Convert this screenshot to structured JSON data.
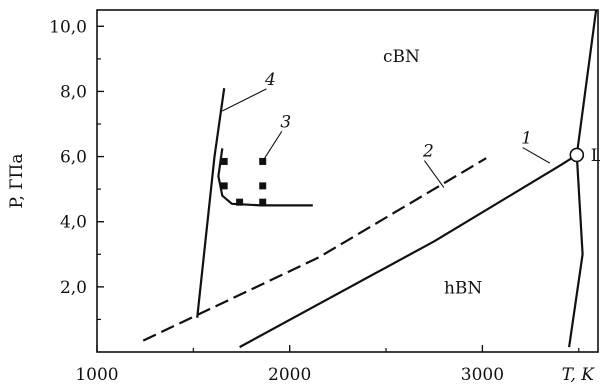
{
  "chart_data": {
    "type": "line",
    "xlabel": "T, K",
    "ylabel": "P, ГПа",
    "xlim": [
      1000,
      3600
    ],
    "ylim": [
      0,
      10.5
    ],
    "x_ticks": [
      1000,
      2000,
      3000
    ],
    "x_tick_labels": [
      "1000",
      "2000",
      "3000"
    ],
    "y_ticks": [
      2,
      4,
      6,
      8,
      10
    ],
    "y_tick_labels": [
      "2,0",
      "4,0",
      "6,0",
      "8,0",
      "10,0"
    ],
    "regions": [
      {
        "label": "cBN",
        "x": 2580,
        "y": 8.9
      },
      {
        "label": "hBN",
        "x": 2900,
        "y": 1.8
      }
    ],
    "series": [
      {
        "label": "1",
        "style": "solid",
        "points": [
          [
            1740,
            0.15
          ],
          [
            2750,
            3.4
          ],
          [
            3410,
            5.75
          ],
          [
            3490,
            6.05
          ]
        ]
      },
      {
        "label": "2",
        "style": "dashed",
        "points": [
          [
            1240,
            0.35
          ],
          [
            2150,
            2.9
          ],
          [
            3020,
            5.95
          ]
        ]
      },
      {
        "label": "3",
        "style": "solid",
        "points": [
          [
            1650,
            6.25
          ],
          [
            1630,
            5.4
          ],
          [
            1650,
            4.8
          ],
          [
            1700,
            4.55
          ],
          [
            1850,
            4.5
          ],
          [
            2120,
            4.5
          ]
        ]
      },
      {
        "label": "4",
        "style": "solid",
        "points": [
          [
            1520,
            1.05
          ],
          [
            1610,
            6.0
          ],
          [
            1660,
            8.1
          ]
        ]
      },
      {
        "label": "",
        "style": "solid",
        "points": [
          [
            3490,
            6.05
          ],
          [
            3590,
            10.5
          ]
        ]
      },
      {
        "label": "",
        "style": "solid",
        "points": [
          [
            3490,
            6.05
          ],
          [
            3520,
            3.0
          ],
          [
            3450,
            0.15
          ]
        ]
      }
    ],
    "data_points": [
      {
        "x": 1660,
        "y": 5.85
      },
      {
        "x": 1860,
        "y": 5.85
      },
      {
        "x": 1660,
        "y": 5.1
      },
      {
        "x": 1860,
        "y": 5.1
      },
      {
        "x": 1740,
        "y": 4.6
      },
      {
        "x": 1860,
        "y": 4.6
      }
    ],
    "triple_point": {
      "label": "L",
      "x": 3490,
      "y": 6.05
    },
    "marker_labels": [
      {
        "text": "1",
        "x": 3230,
        "y": 6.4,
        "leader_to": [
          3350,
          5.8
        ]
      },
      {
        "text": "2",
        "x": 2720,
        "y": 6.0,
        "leader_to": [
          2800,
          5.05
        ]
      },
      {
        "text": "3",
        "x": 1980,
        "y": 6.9,
        "leader_to": [
          1870,
          5.95
        ]
      },
      {
        "text": "4",
        "x": 1900,
        "y": 8.2,
        "leader_to": [
          1650,
          7.4
        ]
      }
    ]
  }
}
